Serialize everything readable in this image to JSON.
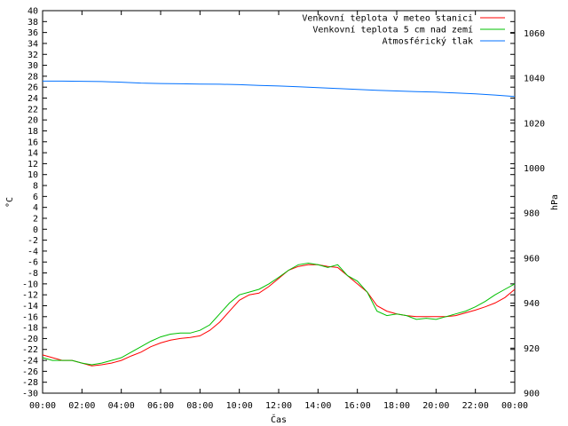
{
  "chart_data": {
    "type": "line",
    "xlabel": "Čas",
    "ylabel": "°C",
    "y2label": "hPa",
    "ylim": [
      -30,
      40
    ],
    "y2lim": [
      900,
      1070
    ],
    "xlim": [
      0,
      24
    ],
    "x_ticks": [
      "00:00",
      "02:00",
      "04:00",
      "06:00",
      "08:00",
      "10:00",
      "12:00",
      "14:00",
      "16:00",
      "18:00",
      "20:00",
      "22:00",
      "00:00"
    ],
    "y_ticks": [
      40,
      38,
      36,
      34,
      32,
      30,
      28,
      26,
      24,
      22,
      20,
      18,
      16,
      14,
      12,
      10,
      8,
      6,
      4,
      2,
      0,
      -2,
      -4,
      -6,
      -8,
      -10,
      -12,
      -14,
      -16,
      -18,
      -20,
      -22,
      -24,
      -26,
      -28,
      -30
    ],
    "y2_ticks": [
      1060,
      1040,
      1020,
      1000,
      980,
      960,
      940,
      920,
      900
    ],
    "grid": false,
    "legend_position": "top-right",
    "series": [
      {
        "name": "Venkovní teplota v meteo stanici",
        "color": "#ff0000",
        "axis": "left",
        "x": [
          0,
          0.5,
          1,
          1.5,
          2,
          2.5,
          3,
          3.5,
          4,
          4.5,
          5,
          5.5,
          6,
          6.5,
          7,
          7.5,
          8,
          8.5,
          9,
          9.5,
          10,
          10.5,
          11,
          11.5,
          12,
          12.5,
          13,
          13.5,
          14,
          14.5,
          15,
          15.5,
          16,
          16.5,
          17,
          17.5,
          18,
          18.5,
          19,
          19.5,
          20,
          20.5,
          21,
          21.5,
          22,
          22.5,
          23,
          23.5,
          24
        ],
        "values": [
          -23,
          -23.5,
          -24,
          -24,
          -24.5,
          -25,
          -24.8,
          -24.5,
          -24,
          -23.2,
          -22.5,
          -21.5,
          -20.8,
          -20.3,
          -20,
          -19.8,
          -19.5,
          -18.5,
          -17,
          -15,
          -13,
          -12,
          -11.7,
          -10.5,
          -9,
          -7.5,
          -6.8,
          -6.5,
          -6.5,
          -6.8,
          -7,
          -8.5,
          -10,
          -11.5,
          -14,
          -15,
          -15.5,
          -15.8,
          -16,
          -16,
          -16,
          -16,
          -15.8,
          -15.3,
          -14.8,
          -14.2,
          -13.5,
          -12.5,
          -11
        ]
      },
      {
        "name": "Venkovní teplota 5 cm nad zemí",
        "color": "#00c000",
        "axis": "left",
        "x": [
          0,
          0.5,
          1,
          1.5,
          2,
          2.5,
          3,
          3.5,
          4,
          4.5,
          5,
          5.5,
          6,
          6.5,
          7,
          7.5,
          8,
          8.5,
          9,
          9.5,
          10,
          10.5,
          11,
          11.5,
          12,
          12.5,
          13,
          13.5,
          14,
          14.5,
          15,
          15.5,
          16,
          16.5,
          17,
          17.5,
          18,
          18.5,
          19,
          19.5,
          20,
          20.5,
          21,
          21.5,
          22,
          22.5,
          23,
          23.5,
          24
        ],
        "values": [
          -23.5,
          -24,
          -24,
          -24,
          -24.5,
          -24.8,
          -24.5,
          -24,
          -23.5,
          -22.5,
          -21.5,
          -20.5,
          -19.7,
          -19.2,
          -19,
          -19,
          -18.5,
          -17.5,
          -15.5,
          -13.5,
          -12,
          -11.5,
          -11,
          -10,
          -8.8,
          -7.5,
          -6.5,
          -6.2,
          -6.5,
          -7,
          -6.5,
          -8.5,
          -9.5,
          -11.5,
          -15,
          -15.8,
          -15.5,
          -15.8,
          -16.5,
          -16.3,
          -16.5,
          -16,
          -15.5,
          -15,
          -14.2,
          -13.2,
          -12,
          -11,
          -10
        ]
      },
      {
        "name": "Atmosférický tlak",
        "color": "#0070ff",
        "axis": "right",
        "x": [
          0,
          1,
          2,
          3,
          4,
          5,
          6,
          7,
          8,
          9,
          10,
          11,
          12,
          13,
          14,
          15,
          16,
          17,
          18,
          19,
          20,
          21,
          22,
          23,
          24
        ],
        "values": [
          1038.7,
          1038.7,
          1038.6,
          1038.5,
          1038.2,
          1037.8,
          1037.6,
          1037.5,
          1037.4,
          1037.3,
          1037.1,
          1036.8,
          1036.5,
          1036.2,
          1035.8,
          1035.4,
          1035,
          1034.6,
          1034.3,
          1034,
          1033.8,
          1033.4,
          1033,
          1032.5,
          1031.8
        ]
      }
    ]
  }
}
